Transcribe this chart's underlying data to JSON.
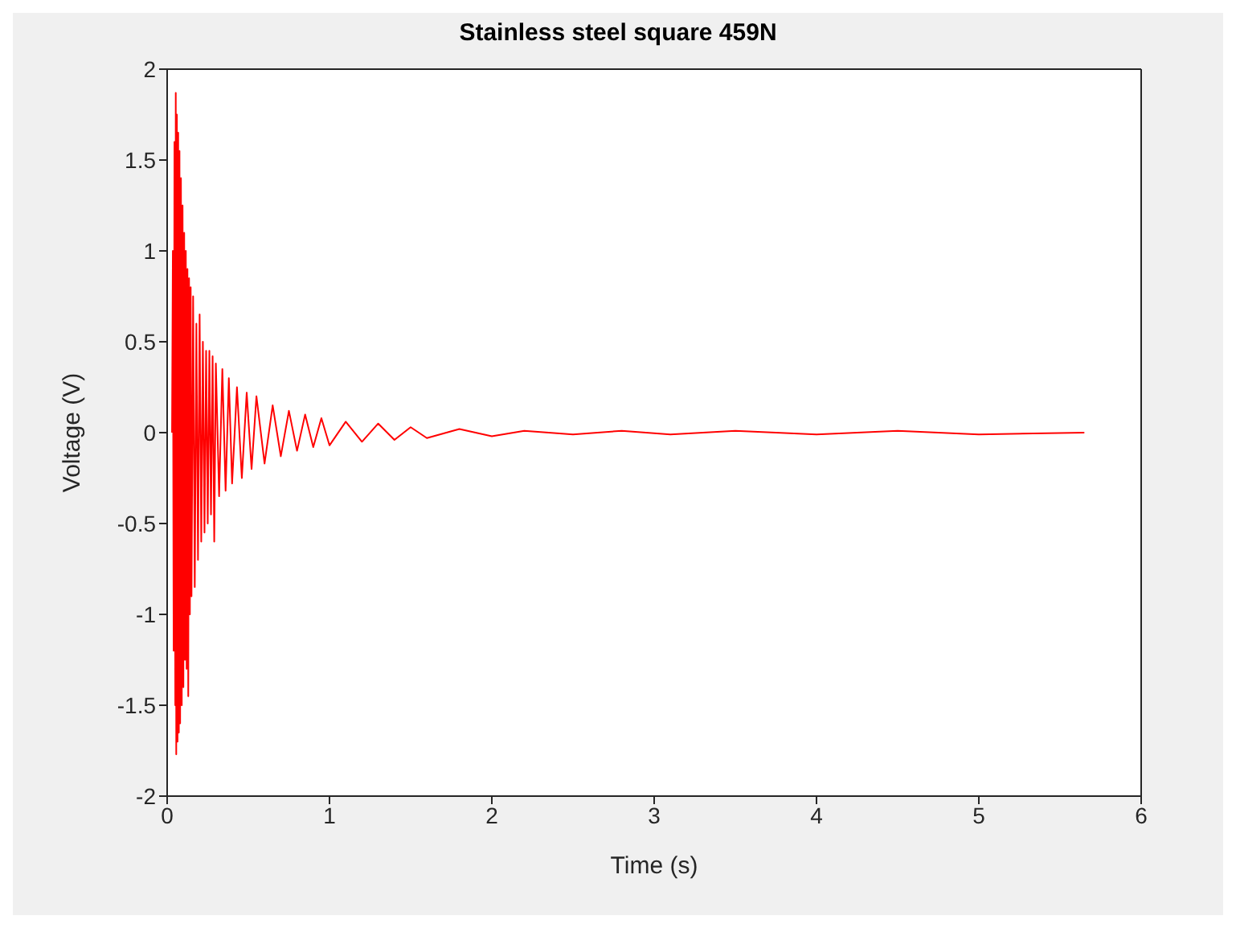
{
  "chart_data": {
    "type": "line",
    "title": "Stainless steel square 459N",
    "xlabel": "Time (s)",
    "ylabel": "Voltage (V)",
    "xlim": [
      0,
      6
    ],
    "xticks": [
      0,
      1,
      2,
      3,
      4,
      5,
      6
    ],
    "ylim": [
      -2,
      2
    ],
    "yticks": [
      -2,
      -1.5,
      -1,
      -0.5,
      0,
      0.5,
      1,
      1.5,
      2
    ],
    "legend": false,
    "marker": "none",
    "line_style": "solid",
    "series": [
      {
        "color": "#ff0000",
        "x": [
          0.03,
          0.035,
          0.04,
          0.045,
          0.05,
          0.053,
          0.056,
          0.06,
          0.064,
          0.068,
          0.072,
          0.076,
          0.08,
          0.085,
          0.09,
          0.095,
          0.1,
          0.105,
          0.11,
          0.115,
          0.12,
          0.125,
          0.13,
          0.135,
          0.14,
          0.145,
          0.15,
          0.16,
          0.17,
          0.18,
          0.19,
          0.2,
          0.21,
          0.22,
          0.23,
          0.24,
          0.25,
          0.26,
          0.27,
          0.28,
          0.29,
          0.3,
          0.32,
          0.34,
          0.36,
          0.38,
          0.4,
          0.43,
          0.46,
          0.49,
          0.52,
          0.55,
          0.6,
          0.65,
          0.7,
          0.75,
          0.8,
          0.85,
          0.9,
          0.95,
          1.0,
          1.1,
          1.2,
          1.3,
          1.4,
          1.5,
          1.6,
          1.8,
          2.0,
          2.2,
          2.5,
          2.8,
          3.1,
          3.5,
          4.0,
          4.5,
          5.0,
          5.65
        ],
        "values": [
          0,
          1.0,
          -1.2,
          1.6,
          -1.5,
          1.87,
          -1.77,
          1.75,
          -1.7,
          1.65,
          -1.65,
          1.55,
          -1.6,
          1.4,
          -1.5,
          1.25,
          -1.4,
          1.1,
          -1.25,
          1.0,
          -1.3,
          0.9,
          -1.45,
          0.85,
          -1.0,
          0.8,
          -0.9,
          0.75,
          -0.85,
          0.6,
          -0.7,
          0.65,
          -0.6,
          0.5,
          -0.55,
          0.45,
          -0.5,
          0.45,
          -0.45,
          0.42,
          -0.6,
          0.38,
          -0.35,
          0.35,
          -0.32,
          0.3,
          -0.28,
          0.25,
          -0.25,
          0.22,
          -0.2,
          0.2,
          -0.17,
          0.15,
          -0.13,
          0.12,
          -0.1,
          0.1,
          -0.08,
          0.08,
          -0.07,
          0.06,
          -0.05,
          0.05,
          -0.04,
          0.03,
          -0.03,
          0.02,
          -0.02,
          0.01,
          -0.01,
          0.01,
          -0.01,
          0.01,
          -0.01,
          0.01,
          -0.01,
          0
        ]
      }
    ]
  }
}
